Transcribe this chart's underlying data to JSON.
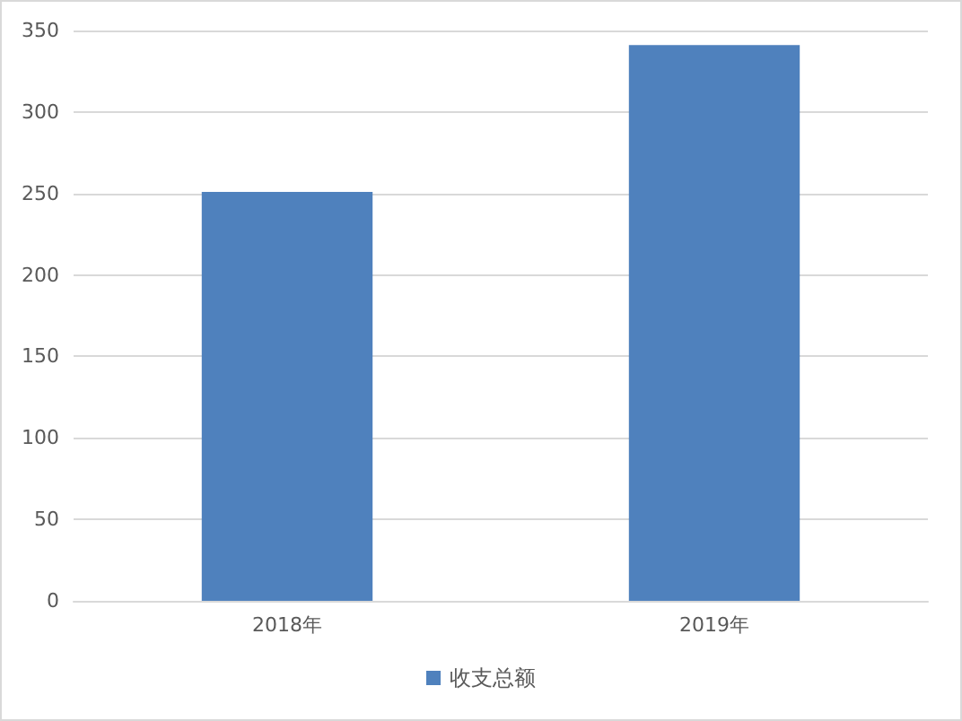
{
  "chart_data": {
    "type": "bar",
    "categories": [
      "2018年",
      "2019年"
    ],
    "series": [
      {
        "name": "收支总额",
        "color": "#4f81bd",
        "values": [
          251,
          341
        ]
      }
    ],
    "ylim": [
      0,
      350
    ],
    "yticks": [
      0,
      50,
      100,
      150,
      200,
      250,
      300,
      350
    ],
    "grid": "y",
    "legend": "bottom"
  }
}
